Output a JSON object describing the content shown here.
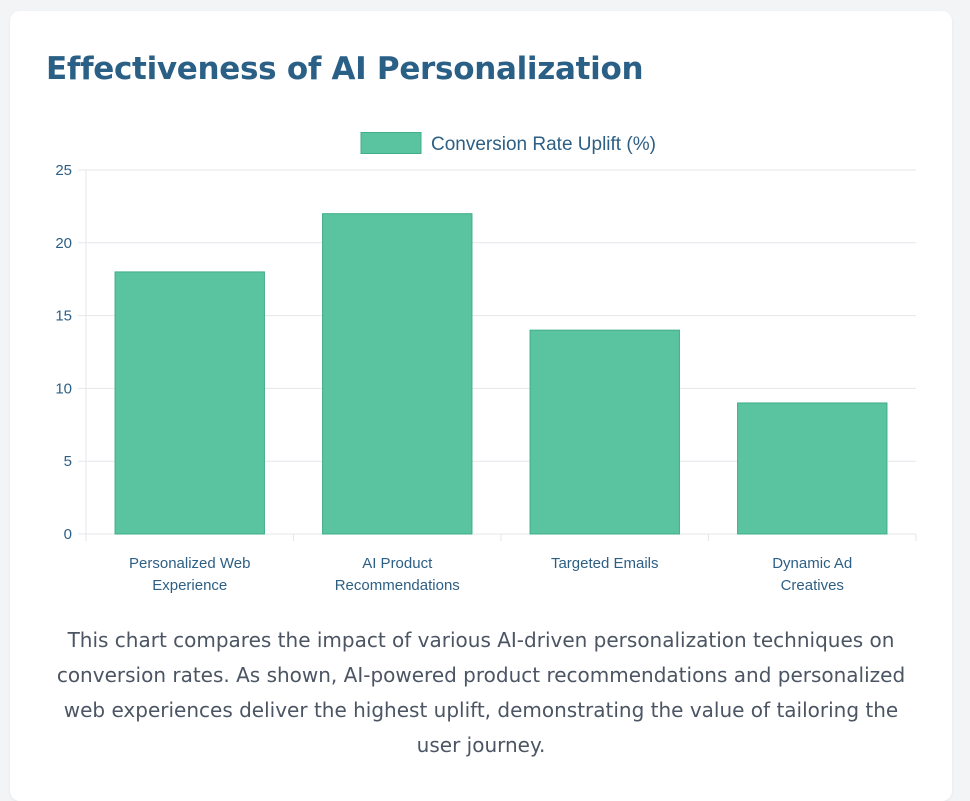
{
  "page": {
    "title": "Effectiveness of AI Personalization",
    "description": "This chart compares the impact of various AI-driven personalization techniques on conversion rates. As shown, AI-powered product recommendations and personalized web experiences deliver the highest uplift, demonstrating the value of tailoring the user journey."
  },
  "colors": {
    "title": "#2a5f86",
    "bar_fill": "#5ac3a0",
    "bar_stroke": "#3fae8a",
    "axis_text": "#2d5f85",
    "grid": "#e5e7eb",
    "caption": "#4b5563"
  },
  "chart_data": {
    "type": "bar",
    "categories": [
      [
        "Personalized Web",
        "Experience"
      ],
      [
        "AI Product",
        "Recommendations"
      ],
      [
        "Targeted Emails"
      ],
      [
        "Dynamic Ad",
        "Creatives"
      ]
    ],
    "series": [
      {
        "name": "Conversion Rate Uplift (%)",
        "values": [
          18,
          22,
          14,
          9
        ]
      }
    ],
    "ylim": [
      0,
      25
    ],
    "yticks": [
      0,
      5,
      10,
      15,
      20,
      25
    ],
    "grid": true,
    "legend": "top-center"
  }
}
